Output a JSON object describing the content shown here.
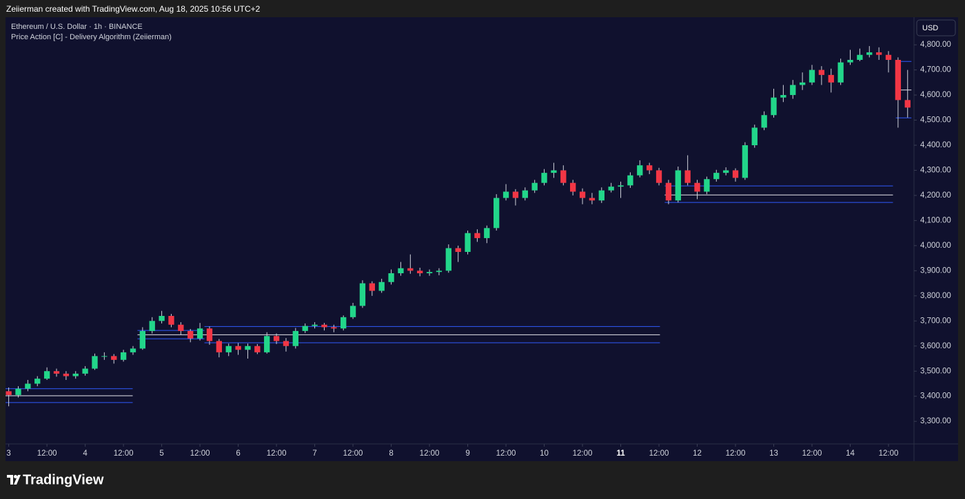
{
  "header": "Zeiierman created with TradingView.com, Aug 18, 2025 10:56 UTC+2",
  "footer": "TradingView",
  "chart_data": {
    "type": "candlestick",
    "title": "Ethereum / U.S. Dollar · 1h · BINANCE",
    "subtitle": "Price Action [C] - Delivery Algorithm (Zeiierman)",
    "currency": "USD",
    "up_color": "#22d68a",
    "down_color": "#f23645",
    "wick_color": "#d1d4dc",
    "zone_color": "#2f5bff",
    "mid_color": "#e8e8ee",
    "x": [
      0,
      3,
      6,
      9,
      12,
      15,
      18,
      21,
      24,
      27,
      30,
      33,
      36,
      39,
      42,
      45,
      48,
      51,
      54,
      57,
      60,
      63,
      66,
      69,
      72,
      75,
      78,
      81,
      84,
      87,
      90,
      93,
      96,
      99,
      102,
      105,
      108,
      111,
      114,
      117,
      120,
      123,
      126,
      129,
      132,
      135,
      138,
      141,
      144,
      147,
      150,
      153,
      156,
      159,
      162,
      165,
      168,
      171,
      174,
      177,
      180,
      183,
      186,
      189,
      192,
      195,
      198,
      201,
      204,
      207,
      210,
      213,
      216,
      219,
      222,
      225,
      228,
      231,
      234,
      237,
      240,
      243,
      246,
      249,
      252,
      255,
      258,
      261,
      264,
      267,
      270,
      273,
      276,
      279,
      282
    ],
    "open": [
      3420,
      3405,
      3430,
      3450,
      3470,
      3500,
      3490,
      3480,
      3490,
      3510,
      3560,
      3560,
      3545,
      3575,
      3590,
      3660,
      3700,
      3720,
      3685,
      3660,
      3630,
      3670,
      3620,
      3575,
      3600,
      3585,
      3600,
      3575,
      3640,
      3620,
      3600,
      3660,
      3680,
      3685,
      3675,
      3670,
      3715,
      3760,
      3850,
      3820,
      3855,
      3890,
      3910,
      3900,
      3890,
      3895,
      3900,
      3990,
      3975,
      4050,
      4030,
      4070,
      4190,
      4215,
      4190,
      4220,
      4250,
      4290,
      4300,
      4250,
      4215,
      4190,
      4180,
      4220,
      4235,
      4240,
      4280,
      4320,
      4300,
      4250,
      4180,
      4300,
      4250,
      4215,
      4265,
      4290,
      4300,
      4270,
      4400,
      4470,
      4520,
      4590,
      4600,
      4640,
      4650,
      4700,
      4680,
      4650,
      4730,
      4740,
      4760,
      4770,
      4760,
      4740,
      4580
    ],
    "high": [
      3435,
      3440,
      3465,
      3480,
      3515,
      3510,
      3500,
      3500,
      3520,
      3570,
      3575,
      3568,
      3585,
      3600,
      3675,
      3715,
      3740,
      3728,
      3695,
      3668,
      3692,
      3678,
      3628,
      3610,
      3612,
      3610,
      3608,
      3655,
      3650,
      3632,
      3672,
      3690,
      3695,
      3692,
      3685,
      3722,
      3772,
      3862,
      3858,
      3868,
      3905,
      3935,
      3965,
      3912,
      3905,
      3910,
      4005,
      4000,
      4060,
      4065,
      4080,
      4205,
      4245,
      4225,
      4232,
      4262,
      4305,
      4330,
      4320,
      4262,
      4228,
      4210,
      4232,
      4250,
      4255,
      4292,
      4340,
      4330,
      4310,
      4262,
      4315,
      4360,
      4262,
      4275,
      4302,
      4312,
      4308,
      4412,
      4482,
      4535,
      4625,
      4640,
      4660,
      4690,
      4720,
      4715,
      4705,
      4745,
      4780,
      4785,
      4795,
      4790,
      4775,
      4750,
      4700
    ],
    "low": [
      3360,
      3395,
      3420,
      3440,
      3465,
      3478,
      3465,
      3470,
      3482,
      3505,
      3545,
      3530,
      3538,
      3565,
      3585,
      3650,
      3690,
      3675,
      3645,
      3615,
      3622,
      3605,
      3555,
      3560,
      3565,
      3550,
      3568,
      3570,
      3608,
      3578,
      3590,
      3652,
      3670,
      3662,
      3655,
      3662,
      3708,
      3752,
      3800,
      3812,
      3845,
      3880,
      3888,
      3878,
      3880,
      3882,
      3892,
      3935,
      3965,
      4015,
      4010,
      4060,
      4180,
      4160,
      4180,
      4210,
      4240,
      4270,
      4240,
      4200,
      4165,
      4165,
      4170,
      4212,
      4190,
      4230,
      4272,
      4285,
      4240,
      4165,
      4172,
      4240,
      4185,
      4205,
      4255,
      4280,
      4255,
      4262,
      4390,
      4460,
      4510,
      4572,
      4585,
      4620,
      4640,
      4640,
      4610,
      4640,
      4720,
      4735,
      4750,
      4740,
      4690,
      4470,
      4510
    ],
    "close": [
      3405,
      3430,
      3450,
      3470,
      3500,
      3490,
      3480,
      3490,
      3510,
      3560,
      3560,
      3545,
      3575,
      3590,
      3660,
      3700,
      3720,
      3685,
      3660,
      3630,
      3670,
      3620,
      3575,
      3600,
      3585,
      3600,
      3575,
      3640,
      3620,
      3600,
      3660,
      3680,
      3685,
      3675,
      3670,
      3715,
      3760,
      3850,
      3820,
      3855,
      3890,
      3910,
      3900,
      3890,
      3895,
      3900,
      3990,
      3975,
      4050,
      4030,
      4070,
      4190,
      4215,
      4190,
      4220,
      4250,
      4290,
      4300,
      4250,
      4215,
      4190,
      4180,
      4220,
      4235,
      4240,
      4280,
      4320,
      4300,
      4250,
      4180,
      4300,
      4250,
      4215,
      4265,
      4290,
      4300,
      4270,
      4400,
      4470,
      4520,
      4590,
      4600,
      4640,
      4650,
      4700,
      4680,
      4650,
      4730,
      4740,
      4760,
      4770,
      4760,
      4740,
      4580,
      4550
    ],
    "zones": [
      {
        "start": -1,
        "end": 38.9,
        "top": 3430,
        "mid": 3402,
        "bottom": 3375
      },
      {
        "start": 40.4,
        "end": 61.4,
        "top": 3662,
        "mid": 3645,
        "bottom": 3629
      },
      {
        "start": 61.4,
        "end": 204.3,
        "top": 3678,
        "mid": 3645,
        "bottom": 3613
      },
      {
        "start": 205.8,
        "end": 277.4,
        "top": 4238,
        "mid": 4202,
        "bottom": 4172
      },
      {
        "start": 278.3,
        "end": 283.2,
        "top": 4734,
        "mid": 4620,
        "bottom": 4509
      }
    ],
    "xlim": [
      -1,
      284
    ],
    "ylim": [
      3210,
      4910
    ],
    "xticks": [
      {
        "value": 0,
        "label": "3"
      },
      {
        "value": 12,
        "label": "12:00"
      },
      {
        "value": 24,
        "label": "4"
      },
      {
        "value": 36,
        "label": "12:00"
      },
      {
        "value": 48,
        "label": "5"
      },
      {
        "value": 60,
        "label": "12:00"
      },
      {
        "value": 72,
        "label": "6"
      },
      {
        "value": 84,
        "label": "12:00"
      },
      {
        "value": 96,
        "label": "7"
      },
      {
        "value": 108,
        "label": "12:00"
      },
      {
        "value": 120,
        "label": "8"
      },
      {
        "value": 132,
        "label": "12:00"
      },
      {
        "value": 144,
        "label": "9"
      },
      {
        "value": 156,
        "label": "12:00"
      },
      {
        "value": 168,
        "label": "10"
      },
      {
        "value": 180,
        "label": "12:00"
      },
      {
        "value": 192,
        "label": "11",
        "bold": true
      },
      {
        "value": 204,
        "label": "12:00"
      },
      {
        "value": 216,
        "label": "12"
      },
      {
        "value": 228,
        "label": "12:00"
      },
      {
        "value": 240,
        "label": "13"
      },
      {
        "value": 252,
        "label": "12:00"
      },
      {
        "value": 264,
        "label": "14"
      },
      {
        "value": 276,
        "label": "12:00"
      }
    ],
    "yticks": [
      {
        "value": 3300,
        "label": "3,300.00"
      },
      {
        "value": 3400,
        "label": "3,400.00"
      },
      {
        "value": 3500,
        "label": "3,500.00"
      },
      {
        "value": 3600,
        "label": "3,600.00"
      },
      {
        "value": 3700,
        "label": "3,700.00"
      },
      {
        "value": 3800,
        "label": "3,800.00"
      },
      {
        "value": 3900,
        "label": "3,900.00"
      },
      {
        "value": 4000,
        "label": "4,000.00"
      },
      {
        "value": 4100,
        "label": "4,100.00"
      },
      {
        "value": 4200,
        "label": "4,200.00"
      },
      {
        "value": 4300,
        "label": "4,300.00"
      },
      {
        "value": 4400,
        "label": "4,400.00"
      },
      {
        "value": 4500,
        "label": "4,500.00"
      },
      {
        "value": 4600,
        "label": "4,600.00"
      },
      {
        "value": 4700,
        "label": "4,700.00"
      },
      {
        "value": 4800,
        "label": "4,800.00"
      }
    ]
  }
}
